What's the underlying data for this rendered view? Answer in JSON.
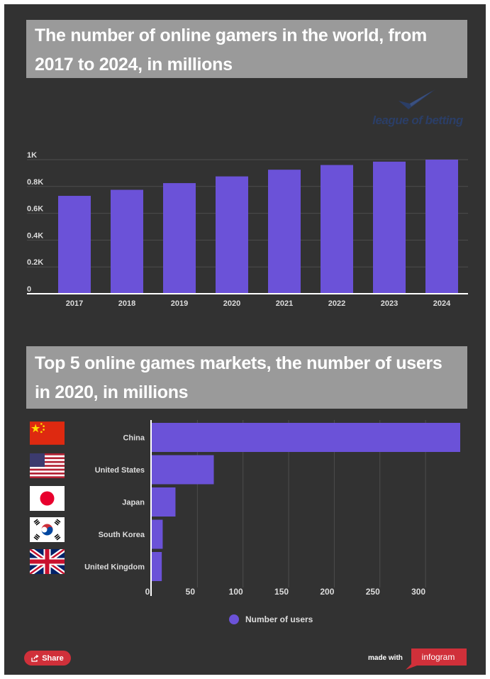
{
  "chart_data": [
    {
      "type": "bar",
      "title": "The number of online gamers in the world, from 2017 to 2024, in millions",
      "categories": [
        "2017",
        "2018",
        "2019",
        "2020",
        "2021",
        "2022",
        "2023",
        "2024"
      ],
      "values": [
        730,
        775,
        825,
        875,
        925,
        960,
        985,
        1000
      ],
      "y_tick_labels": [
        "0",
        "0.2K",
        "0.4K",
        "0.6K",
        "0.8K",
        "1K"
      ],
      "y_tick_values": [
        0,
        200,
        400,
        600,
        800,
        1000
      ],
      "ylim": [
        0,
        1000
      ],
      "xlabel": "",
      "ylabel": "",
      "color": "#6b52d8",
      "grid": true
    },
    {
      "type": "bar",
      "orientation": "horizontal",
      "title": "Top 5 online games markets, the number of users in 2020, in millions",
      "categories": [
        "China",
        "United States",
        "Japan",
        "South Korea",
        "United Kingdom"
      ],
      "series": [
        {
          "name": "Number of users",
          "values": [
            338,
            68,
            26,
            12,
            11
          ]
        }
      ],
      "x_tick_labels": [
        "0",
        "50",
        "100",
        "150",
        "200",
        "250",
        "300"
      ],
      "x_tick_values": [
        0,
        50,
        100,
        150,
        200,
        250,
        300
      ],
      "xlim": [
        0,
        338
      ],
      "legend": "bottom",
      "color": "#6b52d8",
      "grid": true
    }
  ],
  "colors": {
    "background": "#323232",
    "title_box": "#9a9a9a",
    "bar": "#6b52d8",
    "brand": "#d0303a",
    "logo": "#2b3e66"
  },
  "logo": {
    "text": "league of betting",
    "icon": "checkmark-icon"
  },
  "footer": {
    "share_label": "Share",
    "share_icon": "share-icon",
    "made_with": "made with",
    "brand": "infogram"
  }
}
